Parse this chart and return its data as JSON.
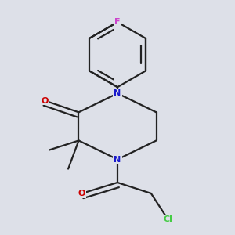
{
  "background_color": "#dde0e8",
  "atom_colors": {
    "C": "#000000",
    "N": "#1a1acc",
    "O": "#cc0000",
    "F": "#cc44cc",
    "Cl": "#44cc44"
  },
  "bond_color": "#222222",
  "bond_width": 1.6,
  "figsize": [
    3.0,
    3.0
  ],
  "dpi": 100
}
